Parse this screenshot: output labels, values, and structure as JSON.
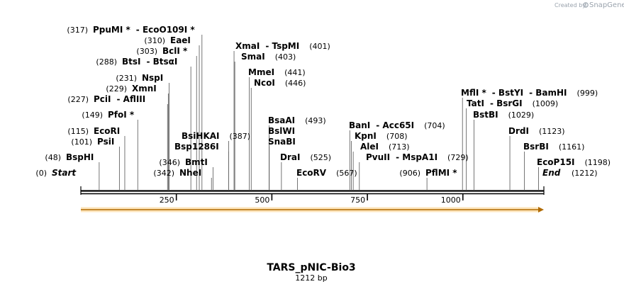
{
  "credit": {
    "created_by": "Created by",
    "brand": "SnapGene"
  },
  "map": {
    "title": "TARS_pNIC-Bio3",
    "length_label": "1212 bp",
    "length": 1212,
    "feature_color": "#f6b13a",
    "ticks": [
      {
        "value": 250,
        "label": "250"
      },
      {
        "value": 500,
        "label": "500"
      },
      {
        "value": 750,
        "label": "750"
      },
      {
        "value": 1000,
        "label": "1000"
      }
    ],
    "sites": [
      {
        "name": "PpuMI",
        "star": true,
        "dash_name": "EcoO109I",
        "dash_star": true,
        "position": 317,
        "pos_label": "(317)",
        "site_bp": 317
      },
      {
        "name": "EaeI",
        "star": false,
        "position": 310,
        "pos_label": "(310)",
        "site_bp": 310
      },
      {
        "name": "BclI",
        "star": true,
        "position": 303,
        "pos_label": "(303)",
        "site_bp": 303
      },
      {
        "name": "BtsI",
        "star": false,
        "dash_name": "BtsαI",
        "dash_star": false,
        "position": 288,
        "pos_label": "(288)",
        "site_bp": 288
      },
      {
        "name": "NspI",
        "star": false,
        "position": 231,
        "pos_label": "(231)",
        "site_bp": 231
      },
      {
        "name": "XmnI",
        "star": false,
        "position": 229,
        "pos_label": "(229)",
        "site_bp": 229
      },
      {
        "name": "PciI",
        "star": false,
        "dash_name": "AflIII",
        "dash_star": false,
        "position": 227,
        "pos_label": "(227)",
        "site_bp": 227
      },
      {
        "name": "PfoI",
        "star": true,
        "position": 149,
        "pos_label": "(149)",
        "site_bp": 149
      },
      {
        "name": "EcoRI",
        "star": false,
        "position": 115,
        "pos_label": "(115)",
        "site_bp": 115
      },
      {
        "name": "PsiI",
        "star": false,
        "position": 101,
        "pos_label": "(101)",
        "site_bp": 101
      },
      {
        "name": "BspHI",
        "star": false,
        "position": 48,
        "pos_label": "(48)",
        "site_bp": 48
      },
      {
        "name": "XmaI",
        "star": false,
        "dash_name": "TspMI",
        "dash_star": false,
        "position": 401,
        "pos_label": "(401)",
        "site_bp": 401
      },
      {
        "name": "SmaI",
        "star": false,
        "position": 403,
        "pos_label": "(403)",
        "site_bp": 403
      },
      {
        "name": "MmeI",
        "star": false,
        "position": 441,
        "pos_label": "(441)",
        "site_bp": 441
      },
      {
        "name": "NcoI",
        "star": false,
        "position": 446,
        "pos_label": "(446)",
        "site_bp": 446
      },
      {
        "name": "BsiHKAI",
        "star": false,
        "position": 387,
        "pos_label": "(387)",
        "site_bp": 387
      },
      {
        "name": "Bsp1286I",
        "star": false,
        "position": 387,
        "pos_label": "",
        "site_bp": 387
      },
      {
        "name": "BmtI",
        "star": false,
        "position": 346,
        "pos_label": "(346)",
        "site_bp": 346
      },
      {
        "name": "NheI",
        "star": false,
        "position": 342,
        "pos_label": "(342)",
        "site_bp": 342
      },
      {
        "name": "BsaAI",
        "star": false,
        "position": 493,
        "pos_label": "(493)",
        "site_bp": 493
      },
      {
        "name": "BslWI",
        "star": false,
        "position": 493,
        "pos_label": "",
        "site_bp": 493
      },
      {
        "name": "SnaBI",
        "star": false,
        "position": 493,
        "pos_label": "",
        "site_bp": 493
      },
      {
        "name": "DraI",
        "star": false,
        "position": 525,
        "pos_label": "(525)",
        "site_bp": 525
      },
      {
        "name": "EcoRV",
        "star": false,
        "position": 567,
        "pos_label": "(567)",
        "site_bp": 567
      },
      {
        "name": "BanI",
        "star": false,
        "dash_name": "Acc65I",
        "dash_star": false,
        "position": 704,
        "pos_label": "(704)",
        "site_bp": 704
      },
      {
        "name": "KpnI",
        "star": false,
        "position": 708,
        "pos_label": "(708)",
        "site_bp": 708
      },
      {
        "name": "AleI",
        "star": false,
        "position": 713,
        "pos_label": "(713)",
        "site_bp": 713
      },
      {
        "name": "PvuII",
        "star": false,
        "dash_name": "MspA1I",
        "dash_star": false,
        "position": 729,
        "pos_label": "(729)",
        "site_bp": 729
      },
      {
        "name": "PflMI",
        "star": true,
        "position": 906,
        "pos_label": "(906)",
        "site_bp": 906
      },
      {
        "name": "MflI",
        "star": true,
        "dash_name": "BstYI",
        "dash_star": false,
        "dash_name2": "BamHI",
        "position": 999,
        "pos_label": "(999)",
        "site_bp": 999
      },
      {
        "name": "TatI",
        "star": false,
        "dash_name": "BsrGI",
        "dash_star": false,
        "position": 1009,
        "pos_label": "(1009)",
        "site_bp": 1009
      },
      {
        "name": "BstBI",
        "star": false,
        "position": 1029,
        "pos_label": "(1029)",
        "site_bp": 1029
      },
      {
        "name": "DrdI",
        "star": false,
        "position": 1123,
        "pos_label": "(1123)",
        "site_bp": 1123
      },
      {
        "name": "BsrBI",
        "star": false,
        "position": 1161,
        "pos_label": "(1161)",
        "site_bp": 1161
      },
      {
        "name": "EcoP15I",
        "star": false,
        "position": 1198,
        "pos_label": "(1198)",
        "site_bp": 1198
      }
    ],
    "start": {
      "label": "Start",
      "pos_label": "(0)"
    },
    "end": {
      "label": "End",
      "pos_label": "(1212)"
    }
  }
}
